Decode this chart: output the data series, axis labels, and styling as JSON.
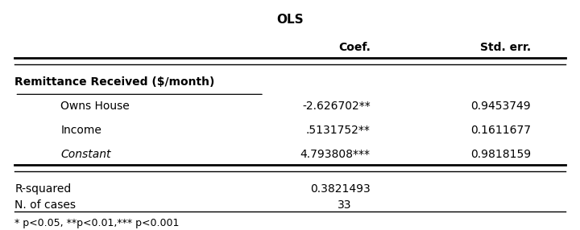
{
  "title": "OLS",
  "col_coef": "Coef.",
  "col_stderr": "Std. err.",
  "section_label": "Remittance Received ($/month)",
  "rows": [
    {
      "label": "Owns House",
      "italic": false,
      "coef": "-2.626702**",
      "se": "0.9453749"
    },
    {
      "label": "Income",
      "italic": false,
      "coef": ".5131752**",
      "se": "0.1611677"
    },
    {
      "label": "Constant",
      "italic": true,
      "coef": "4.793808***",
      "se": "0.9818159"
    }
  ],
  "rsquared_label": "R-squared",
  "rsquared_value": "0.3821493",
  "ncases_label": "N. of cases",
  "ncases_value": "33",
  "footnote": "* p<0.05, **p<0.01,*** p<0.001",
  "bg_color": "#ffffff",
  "text_color": "#000000",
  "font_size": 10,
  "title_font_size": 11
}
